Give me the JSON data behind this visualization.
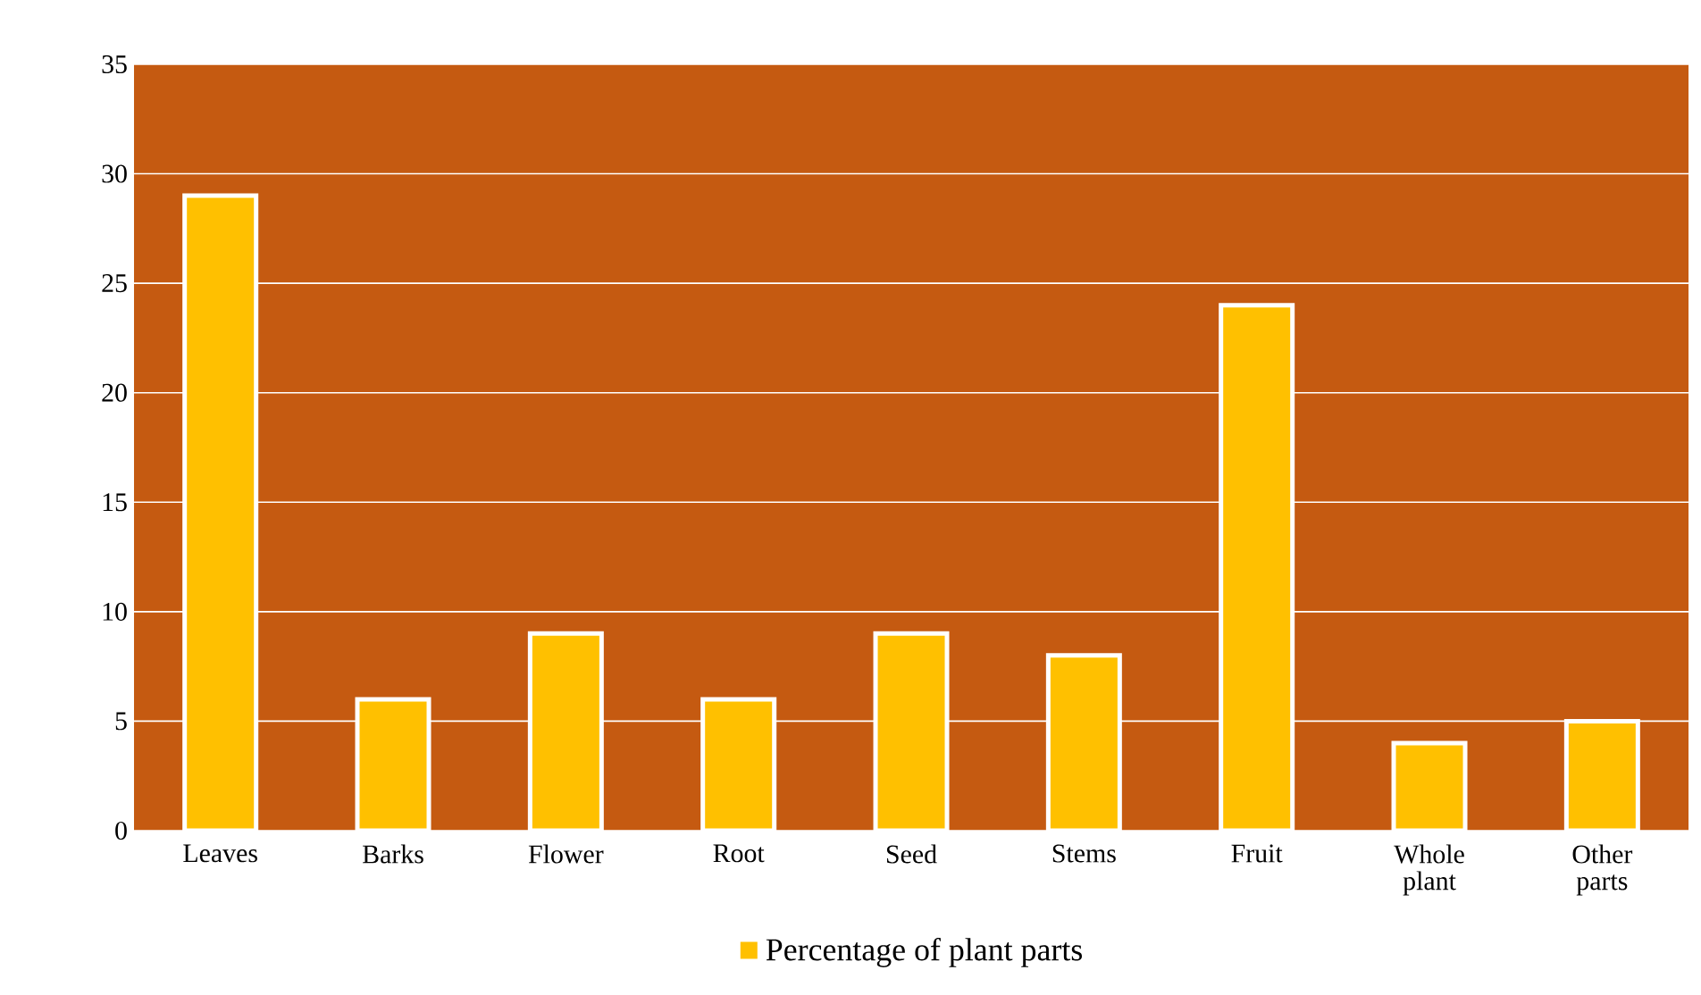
{
  "chart_data": {
    "type": "bar",
    "categories": [
      "Leaves",
      "Barks",
      "Flower",
      "Root",
      "Seed",
      "Stems",
      "Fruit",
      "Whole plant",
      "Other parts"
    ],
    "series": [
      {
        "name": "Percentage of plant parts",
        "color": "#ffc000",
        "values": [
          29,
          6,
          9,
          6,
          9,
          8,
          24,
          4,
          5
        ]
      }
    ],
    "ylim": [
      0,
      35
    ],
    "yticks": [
      0,
      5,
      10,
      15,
      20,
      25,
      30,
      35
    ],
    "grid": "y",
    "legend": "bottom"
  }
}
